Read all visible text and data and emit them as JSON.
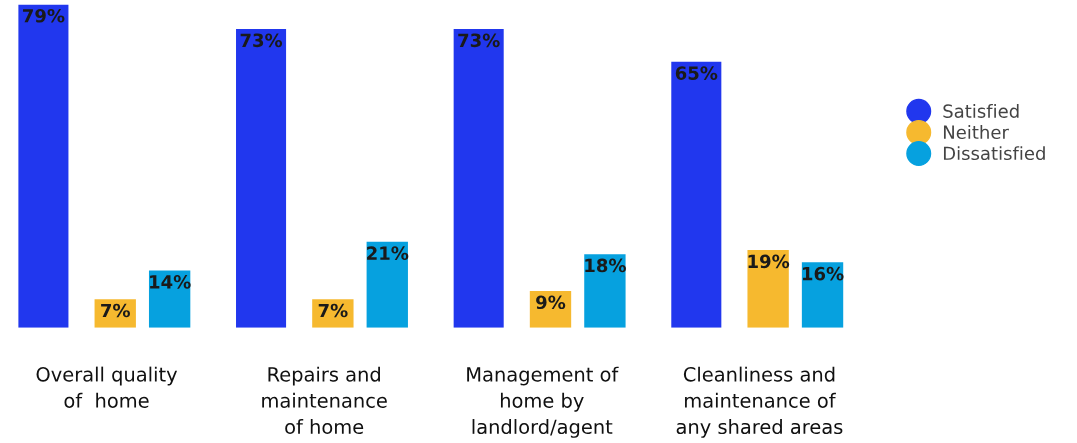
{
  "chart_data": {
    "type": "bar",
    "categories": [
      "Overall quality\nof  home",
      "Repairs and\nmaintenance\nof home",
      "Management of\nhome by\nlandlord/agent",
      "Cleanliness and\nmaintenance of\nany shared areas"
    ],
    "series": [
      {
        "name": "Satisfied",
        "color": "#2137ee",
        "values": [
          79,
          73,
          73,
          65
        ],
        "value_labels": [
          "79%",
          "73%",
          "73%",
          "65%"
        ]
      },
      {
        "name": "Neither",
        "color": "#f6b92f",
        "values": [
          7,
          7,
          9,
          19
        ],
        "value_labels": [
          "7%",
          "7%",
          "9%",
          "19%"
        ]
      },
      {
        "name": "Dissatisfied",
        "color": "#06a1df",
        "values": [
          14,
          21,
          18,
          16
        ],
        "value_labels": [
          "14%",
          "21%",
          "18%",
          "16%"
        ]
      }
    ],
    "legend": "right",
    "marker": "circle"
  }
}
